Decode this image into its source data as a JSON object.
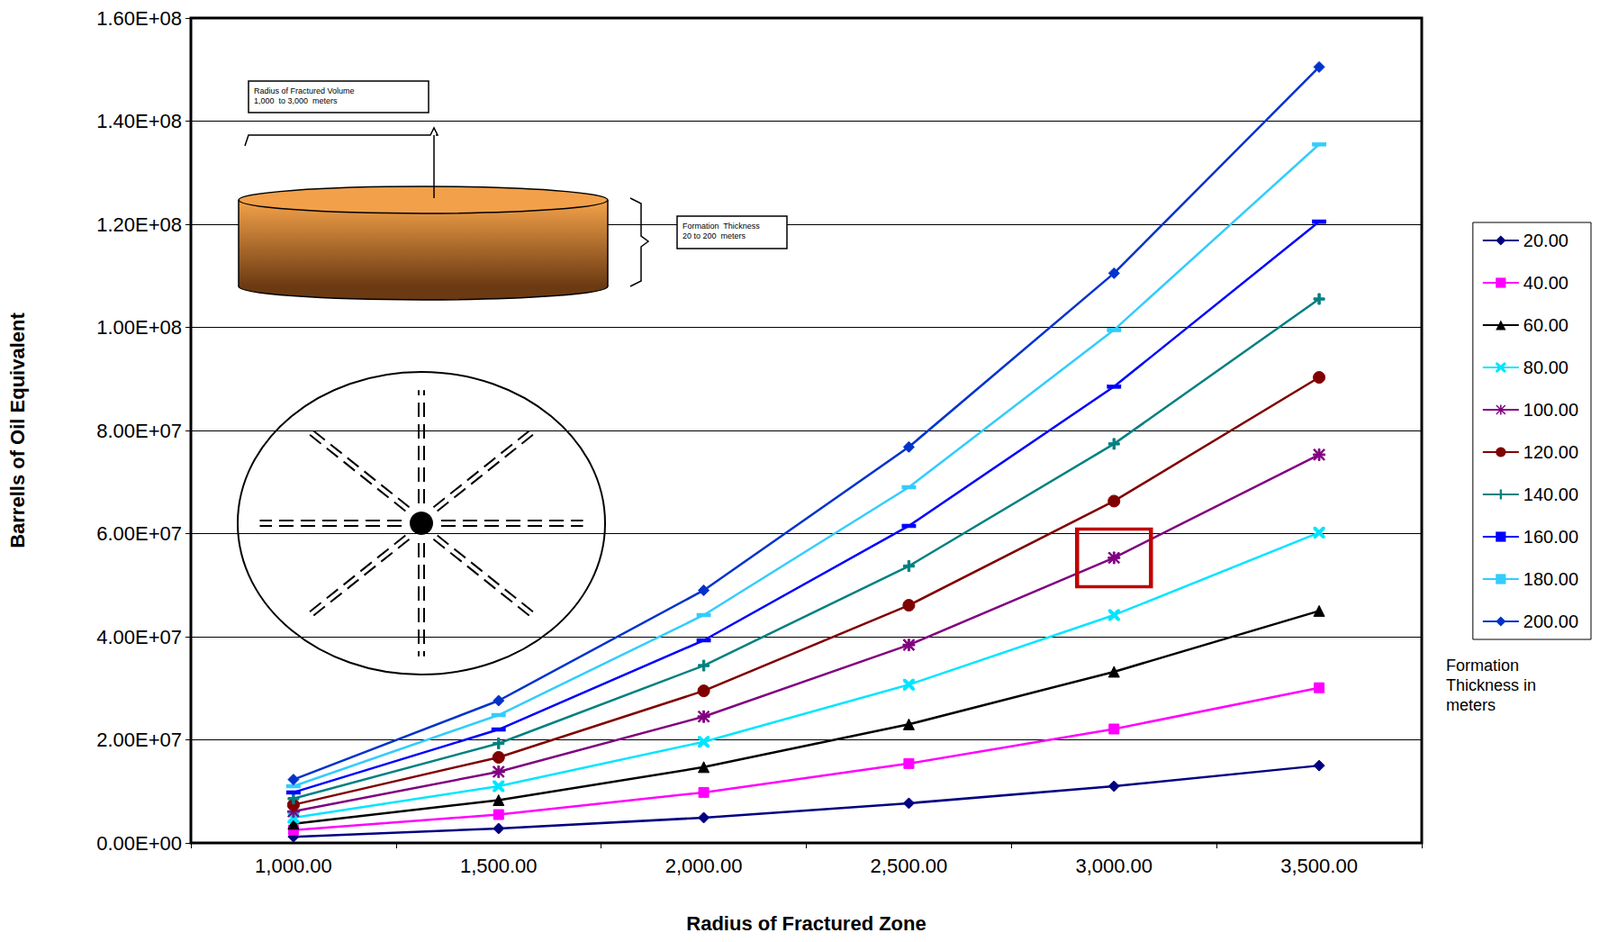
{
  "chart_data": {
    "type": "line",
    "x_label": "Radius of Fractured Zone",
    "y_label": "Barrells of Oil Equivalent",
    "categories": [
      "1,000.00",
      "1,500.00",
      "2,000.00",
      "2,500.00",
      "3,000.00",
      "3,500.00"
    ],
    "series": [
      {
        "name": "20.00",
        "color": "#000080",
        "marker": "diamond",
        "values": [
          1200000,
          2800000,
          4900000,
          7700000,
          11000000,
          15000000
        ]
      },
      {
        "name": "40.00",
        "color": "#FF00FF",
        "marker": "square",
        "values": [
          2500000,
          5500000,
          9800000,
          15400000,
          22100000,
          30100000
        ]
      },
      {
        "name": "60.00",
        "color": "#000000",
        "marker": "triangle",
        "values": [
          3700000,
          8300000,
          14700000,
          23000000,
          33200000,
          45000000
        ]
      },
      {
        "name": "80.00",
        "color": "#00E5FF",
        "marker": "x",
        "values": [
          4900000,
          11000000,
          19600000,
          30700000,
          44200000,
          60200000
        ]
      },
      {
        "name": "100.00",
        "color": "#800080",
        "marker": "star",
        "values": [
          6100000,
          13800000,
          24500000,
          38400000,
          55300000,
          75300000
        ]
      },
      {
        "name": "120.00",
        "color": "#800000",
        "marker": "circle",
        "values": [
          7400000,
          16600000,
          29500000,
          46100000,
          66300000,
          90300000
        ]
      },
      {
        "name": "140.00",
        "color": "#008080",
        "marker": "plus",
        "values": [
          8600000,
          19300000,
          34400000,
          53700000,
          77400000,
          105500000
        ]
      },
      {
        "name": "160.00",
        "color": "#0000FF",
        "marker": "dash",
        "values": [
          9800000,
          22000000,
          39300000,
          61500000,
          88500000,
          120500000
        ]
      },
      {
        "name": "180.00",
        "color": "#33CCFF",
        "marker": "dash",
        "values": [
          11000000,
          24800000,
          44200000,
          69000000,
          99500000,
          135500000
        ]
      },
      {
        "name": "200.00",
        "color": "#0033CC",
        "marker": "diamond",
        "values": [
          12300000,
          27600000,
          49000000,
          76800000,
          110500000,
          150500000
        ]
      }
    ],
    "ylim": [
      0,
      160000000
    ],
    "yticks": [
      {
        "value": 0,
        "label": "0.00E+00"
      },
      {
        "value": 20000000,
        "label": "2.00E+07"
      },
      {
        "value": 40000000,
        "label": "4.00E+07"
      },
      {
        "value": 60000000,
        "label": "6.00E+07"
      },
      {
        "value": 80000000,
        "label": "8.00E+07"
      },
      {
        "value": 100000000,
        "label": "1.00E+08"
      },
      {
        "value": 120000000,
        "label": "1.20E+08"
      },
      {
        "value": 140000000,
        "label": "1.40E+08"
      },
      {
        "value": 160000000,
        "label": "1.60E+08"
      }
    ],
    "grid": true,
    "legend": "right",
    "annotations": [
      {
        "type": "text",
        "text": "Formation Thickness in meters"
      },
      {
        "type": "box",
        "series": "100.00",
        "x": "3,000.00",
        "color": "#C00000"
      }
    ],
    "inset": {
      "radius_label": [
        "Radius of Fractured Volume",
        "1,000  to 3,000  meters"
      ],
      "thickness_label": [
        "Formation  Thickness",
        "20 to 200  meters"
      ]
    }
  }
}
